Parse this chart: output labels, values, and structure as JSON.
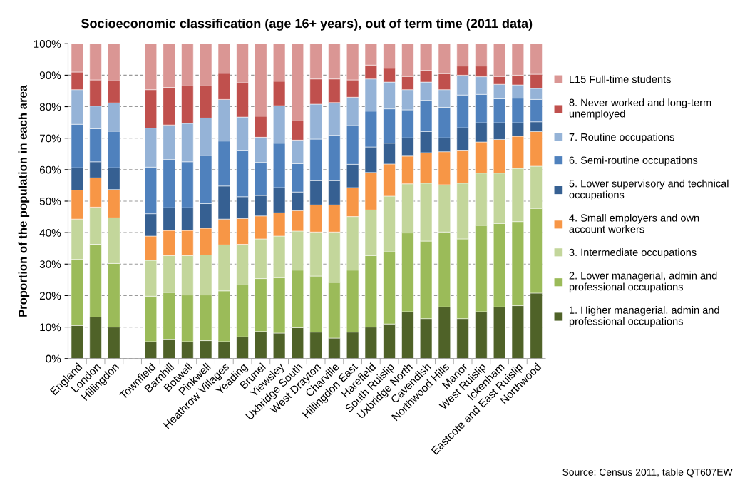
{
  "chart_data": {
    "type": "bar",
    "stacked": true,
    "title": "Socioeconomic classification (age 16+ years), out of term time (2011 data)",
    "ylabel": "Proportion of the population in each area",
    "categories": [
      "England",
      "London",
      "Hillingdon",
      null,
      "Townfield",
      "Barnhill",
      "Botwell",
      "Pinkwell",
      "Heathrow Villages",
      "Yeading",
      "Brunel",
      "Yiewsley",
      "Uxbridge South",
      "West Drayton",
      "Charville",
      "Hillingdon East",
      "Harefield",
      "South Ruislip",
      "Uxbridge North",
      "Cavendish",
      "Northwood Hills",
      "Manor",
      "West Ruislip",
      "Ickenham",
      "Eastcote and East Ruislip",
      "Northwood"
    ],
    "series": [
      {
        "name": "1. Higher managerial, admin and\nprofessional occupations",
        "color": "#4f6228",
        "values": [
          10.5,
          13.2,
          10.0,
          null,
          5.4,
          6.0,
          5.4,
          5.7,
          5.4,
          6.9,
          8.6,
          8.1,
          9.8,
          8.4,
          6.5,
          8.4,
          10.0,
          11.0,
          14.9,
          12.7,
          16.4,
          12.7,
          14.9,
          16.4,
          16.8,
          20.8
        ]
      },
      {
        "name": "2. Lower managerial, admin and\nprofessional occupations",
        "color": "#9bbb59",
        "values": [
          21.0,
          23.1,
          20.2,
          null,
          14.4,
          15.0,
          14.8,
          14.5,
          16.1,
          16.5,
          16.8,
          17.6,
          18.3,
          17.8,
          17.7,
          19.7,
          22.7,
          22.9,
          25.0,
          24.6,
          23.8,
          25.3,
          27.4,
          26.5,
          26.7,
          26.9
        ]
      },
      {
        "name": "3. Intermediate occupations",
        "color": "#c3d69b",
        "values": [
          12.8,
          11.8,
          14.5,
          null,
          11.4,
          11.7,
          12.5,
          12.7,
          14.6,
          12.9,
          12.6,
          13.2,
          12.4,
          14.0,
          16.0,
          17.0,
          14.5,
          17.7,
          15.6,
          18.4,
          15.0,
          17.7,
          16.6,
          16.0,
          16.9,
          13.4
        ]
      },
      {
        "name": "4. Small employers and own\naccount workers",
        "color": "#f79646",
        "values": [
          9.2,
          9.3,
          9.0,
          null,
          7.7,
          8.0,
          8.0,
          8.5,
          8.2,
          8.2,
          7.3,
          7.4,
          6.5,
          8.6,
          8.6,
          9.2,
          11.9,
          10.2,
          8.8,
          9.7,
          10.5,
          10.3,
          9.9,
          10.7,
          10.2,
          11.0
        ]
      },
      {
        "name": "5. Lower supervisory and technical\noccupations",
        "color": "#366092",
        "values": [
          7.1,
          5.1,
          6.9,
          null,
          7.1,
          7.2,
          7.2,
          7.8,
          10.5,
          6.9,
          6.5,
          8.0,
          5.9,
          7.7,
          7.7,
          7.4,
          8.1,
          6.6,
          5.8,
          6.7,
          4.4,
          7.3,
          6.1,
          5.3,
          4.3,
          3.1
        ]
      },
      {
        "name": "6. Semi-routine occupations",
        "color": "#4f81bd",
        "values": [
          13.8,
          10.5,
          11.6,
          null,
          14.8,
          15.3,
          14.6,
          15.3,
          14.3,
          14.6,
          10.5,
          14.1,
          9.0,
          13.2,
          14.4,
          12.3,
          11.4,
          10.9,
          8.9,
          9.9,
          9.7,
          10.4,
          9.0,
          7.6,
          7.8,
          7.1
        ]
      },
      {
        "name": "7. Routine occupations",
        "color": "#95b3d7",
        "values": [
          11.0,
          7.2,
          9.0,
          null,
          12.4,
          11.0,
          12.2,
          11.9,
          13.2,
          10.7,
          8.0,
          11.9,
          7.5,
          11.1,
          10.4,
          9.0,
          10.2,
          8.5,
          6.4,
          5.8,
          5.6,
          6.3,
          5.6,
          4.6,
          4.2,
          3.5
        ]
      },
      {
        "name": "8. Never worked and long-term\nunemployed",
        "color": "#c0504d",
        "values": [
          5.6,
          8.3,
          7.0,
          null,
          12.2,
          11.9,
          11.9,
          10.2,
          8.3,
          10.9,
          6.7,
          7.8,
          6.1,
          8.0,
          7.5,
          5.5,
          4.4,
          4.4,
          4.2,
          3.7,
          5.1,
          2.9,
          3.4,
          2.5,
          3.1,
          4.5
        ]
      },
      {
        "name": "L15 Full-time students",
        "color": "#da9694",
        "values": [
          9.0,
          11.5,
          11.8,
          null,
          14.6,
          13.9,
          13.4,
          13.4,
          9.4,
          12.4,
          23.0,
          11.9,
          24.5,
          11.2,
          11.2,
          11.5,
          6.8,
          7.8,
          10.4,
          8.5,
          9.5,
          7.1,
          7.1,
          10.4,
          10.0,
          9.7
        ]
      }
    ],
    "ylim": [
      0,
      100
    ],
    "yticks": [
      {
        "value": 0,
        "label": "0%"
      },
      {
        "value": 10,
        "label": "10%"
      },
      {
        "value": 20,
        "label": "20%"
      },
      {
        "value": 30,
        "label": "30%"
      },
      {
        "value": 40,
        "label": "40%"
      },
      {
        "value": 50,
        "label": "50%"
      },
      {
        "value": 60,
        "label": "60%"
      },
      {
        "value": 70,
        "label": "70%"
      },
      {
        "value": 80,
        "label": "80%"
      },
      {
        "value": 90,
        "label": "90%"
      },
      {
        "value": 100,
        "label": "100%"
      }
    ],
    "grid": "y",
    "legend": "right",
    "annotations": [
      "Source: Census 2011, table QT607EW"
    ]
  }
}
